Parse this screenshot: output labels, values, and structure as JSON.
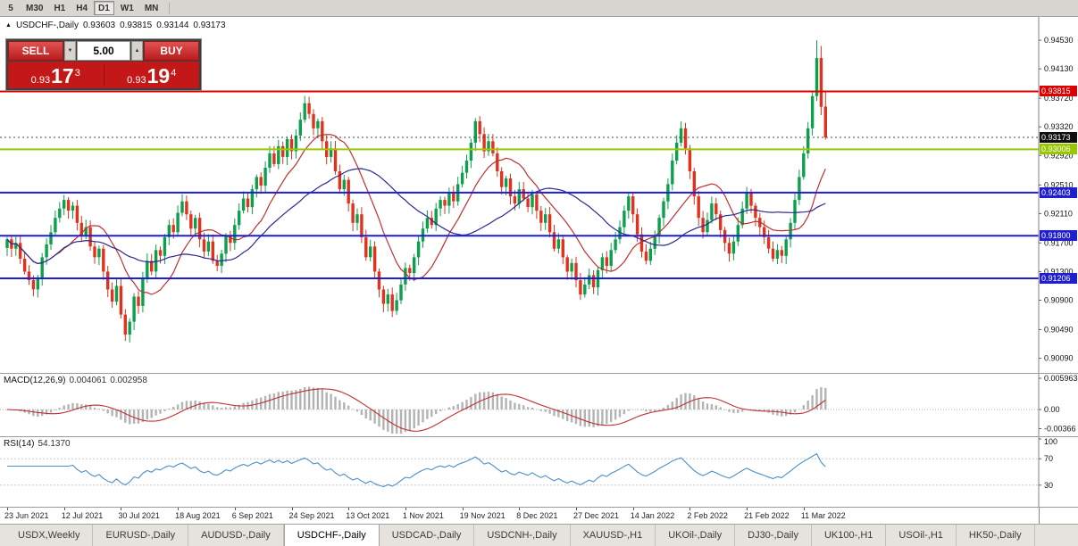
{
  "toolbar": {
    "timeframes": [
      "5",
      "M30",
      "H1",
      "H4",
      "D1",
      "W1",
      "MN"
    ],
    "active_timeframe": "D1"
  },
  "chart_header": {
    "collapse_icon": "▲",
    "symbol": "USDCHF-,Daily",
    "open": "0.93603",
    "high": "0.93815",
    "low": "0.93144",
    "close": "0.93173"
  },
  "trade_panel": {
    "sell_label": "SELL",
    "buy_label": "BUY",
    "volume": "5.00",
    "volume_down_icon": "▼",
    "volume_up_icon": "▲",
    "sell_price": {
      "base": "0.93",
      "big": "17",
      "sup": "3"
    },
    "buy_price": {
      "base": "0.93",
      "big": "19",
      "sup": "4"
    }
  },
  "indicators": {
    "macd_title": "MACD(12,26,9)",
    "macd_value_main": "0.004061",
    "macd_value_signal": "0.002958",
    "rsi_title": "RSI(14)",
    "rsi_value": "54.1370"
  },
  "x_axis_dates": [
    "23 Jun 2021",
    "12 Jul 2021",
    "30 Jul 2021",
    "18 Aug 2021",
    "6 Sep 2021",
    "24 Sep 2021",
    "13 Oct 2021",
    "1 Nov 2021",
    "19 Nov 2021",
    "8 Dec 2021",
    "27 Dec 2021",
    "14 Jan 2022",
    "2 Feb 2022",
    "21 Feb 2022",
    "11 Mar 2022"
  ],
  "tabs": {
    "active": "USDCHF-,Daily",
    "items": [
      "USDX,Weekly",
      "EURUSD-,Daily",
      "AUDUSD-,Daily",
      "USDCHF-,Daily",
      "USDCAD-,Daily",
      "USDCNH-,Daily",
      "XAUUSD-,H1",
      "UKOil-,Daily",
      "DJ30-,Daily",
      "UK100-,H1",
      "USOil-,H1",
      "HK50-,Daily"
    ],
    "note": "bottom chart tab bar"
  },
  "chart_data": {
    "type": "candlestick",
    "symbol": "USDCHF",
    "timeframe": "Daily",
    "visible_ohlc": {
      "open": 0.93603,
      "high": 0.93815,
      "low": 0.93144,
      "close": 0.93173
    },
    "current_price": 0.93173,
    "bull_color": "#0ca04d",
    "bear_color": "#e0321e",
    "x_label_step": 13,
    "closes": [
      0.9175,
      0.9162,
      0.917,
      0.9148,
      0.913,
      0.9118,
      0.9105,
      0.9122,
      0.915,
      0.9168,
      0.9185,
      0.9205,
      0.9218,
      0.923,
      0.9215,
      0.9222,
      0.9198,
      0.918,
      0.9192,
      0.9165,
      0.915,
      0.9162,
      0.913,
      0.9105,
      0.9088,
      0.911,
      0.907,
      0.9042,
      0.906,
      0.9095,
      0.9082,
      0.912,
      0.9145,
      0.913,
      0.916,
      0.9152,
      0.9178,
      0.9195,
      0.9185,
      0.9212,
      0.9228,
      0.921,
      0.919,
      0.9205,
      0.9175,
      0.9158,
      0.9172,
      0.9145,
      0.9138,
      0.9155,
      0.918,
      0.917,
      0.9195,
      0.9215,
      0.9232,
      0.922,
      0.9245,
      0.9262,
      0.925,
      0.9275,
      0.9295,
      0.928,
      0.9305,
      0.929,
      0.9315,
      0.9298,
      0.932,
      0.9342,
      0.9365,
      0.935,
      0.933,
      0.934,
      0.9312,
      0.929,
      0.9302,
      0.927,
      0.9245,
      0.9258,
      0.9225,
      0.9198,
      0.921,
      0.9178,
      0.915,
      0.9165,
      0.913,
      0.9105,
      0.9085,
      0.9098,
      0.9075,
      0.909,
      0.9112,
      0.9135,
      0.9128,
      0.915,
      0.9172,
      0.919,
      0.9205,
      0.9195,
      0.9218,
      0.923,
      0.9222,
      0.924,
      0.9228,
      0.9252,
      0.9268,
      0.9285,
      0.931,
      0.934,
      0.9322,
      0.9298,
      0.9312,
      0.9295,
      0.927,
      0.9248,
      0.926,
      0.9235,
      0.9225,
      0.9245,
      0.9232,
      0.922,
      0.9238,
      0.9215,
      0.9198,
      0.921,
      0.9185,
      0.9162,
      0.9175,
      0.915,
      0.913,
      0.9142,
      0.9118,
      0.9098,
      0.9112,
      0.9125,
      0.9108,
      0.9132,
      0.915,
      0.9138,
      0.916,
      0.9175,
      0.9192,
      0.9215,
      0.9235,
      0.921,
      0.9182,
      0.9158,
      0.9145,
      0.9162,
      0.918,
      0.9205,
      0.9228,
      0.9252,
      0.9285,
      0.931,
      0.933,
      0.9302,
      0.927,
      0.9235,
      0.9205,
      0.9185,
      0.9202,
      0.9225,
      0.921,
      0.9188,
      0.917,
      0.9155,
      0.9172,
      0.9195,
      0.9218,
      0.924,
      0.9222,
      0.9205,
      0.9192,
      0.9178,
      0.9162,
      0.9148,
      0.916,
      0.9152,
      0.9175,
      0.9198,
      0.923,
      0.9262,
      0.9295,
      0.933,
      0.9375,
      0.9428,
      0.936,
      0.9317
    ],
    "overrides": {
      "185": {
        "h": 0.9453,
        "l": 0.9368
      },
      "186": {
        "h": 0.9445
      },
      "187": {
        "o": 0.93603,
        "h": 0.93815,
        "l": 0.93144,
        "c": 0.93173
      }
    },
    "price_range": {
      "max": 0.9478,
      "min": 0.8996
    },
    "price_ticks": [
      0.9453,
      0.9413,
      0.9372,
      0.9332,
      0.9292,
      0.9251,
      0.9211,
      0.917,
      0.913,
      0.909,
      0.9049,
      0.9009
    ],
    "levels": [
      {
        "price": 0.93815,
        "color": "#dd0000",
        "width": 2
      },
      {
        "price": 0.93006,
        "color": "#9ac800",
        "width": 2
      },
      {
        "price": 0.92403,
        "color": "#1f1fd0",
        "width": 2
      },
      {
        "price": 0.918,
        "color": "#1f1fd0",
        "width": 2
      },
      {
        "price": 0.91206,
        "color": "#1f1fd0",
        "width": 2
      }
    ],
    "ma": [
      {
        "type": "sma",
        "period": 12,
        "color": "#c03030"
      },
      {
        "type": "sma",
        "period": 30,
        "color": "#2a2a90"
      }
    ],
    "macd": {
      "fast": 12,
      "slow": 26,
      "signal": 9,
      "hist_color": "#b3b3b3",
      "signal_color": "#c03030",
      "range": {
        "max": 0.0063,
        "min": -0.0046
      },
      "scale": [
        {
          "label": "0.005963",
          "value": 0.005963
        },
        {
          "label": "0.00",
          "value": 0
        },
        {
          "label": "-0.00366",
          "value": -0.00366
        }
      ]
    },
    "rsi": {
      "period": 14,
      "color": "#4a8fc7",
      "levels": [
        70,
        30
      ],
      "scale": [
        {
          "label": "100",
          "value": 100
        },
        {
          "label": "70",
          "value": 70
        },
        {
          "label": "30",
          "value": 30
        }
      ]
    }
  }
}
